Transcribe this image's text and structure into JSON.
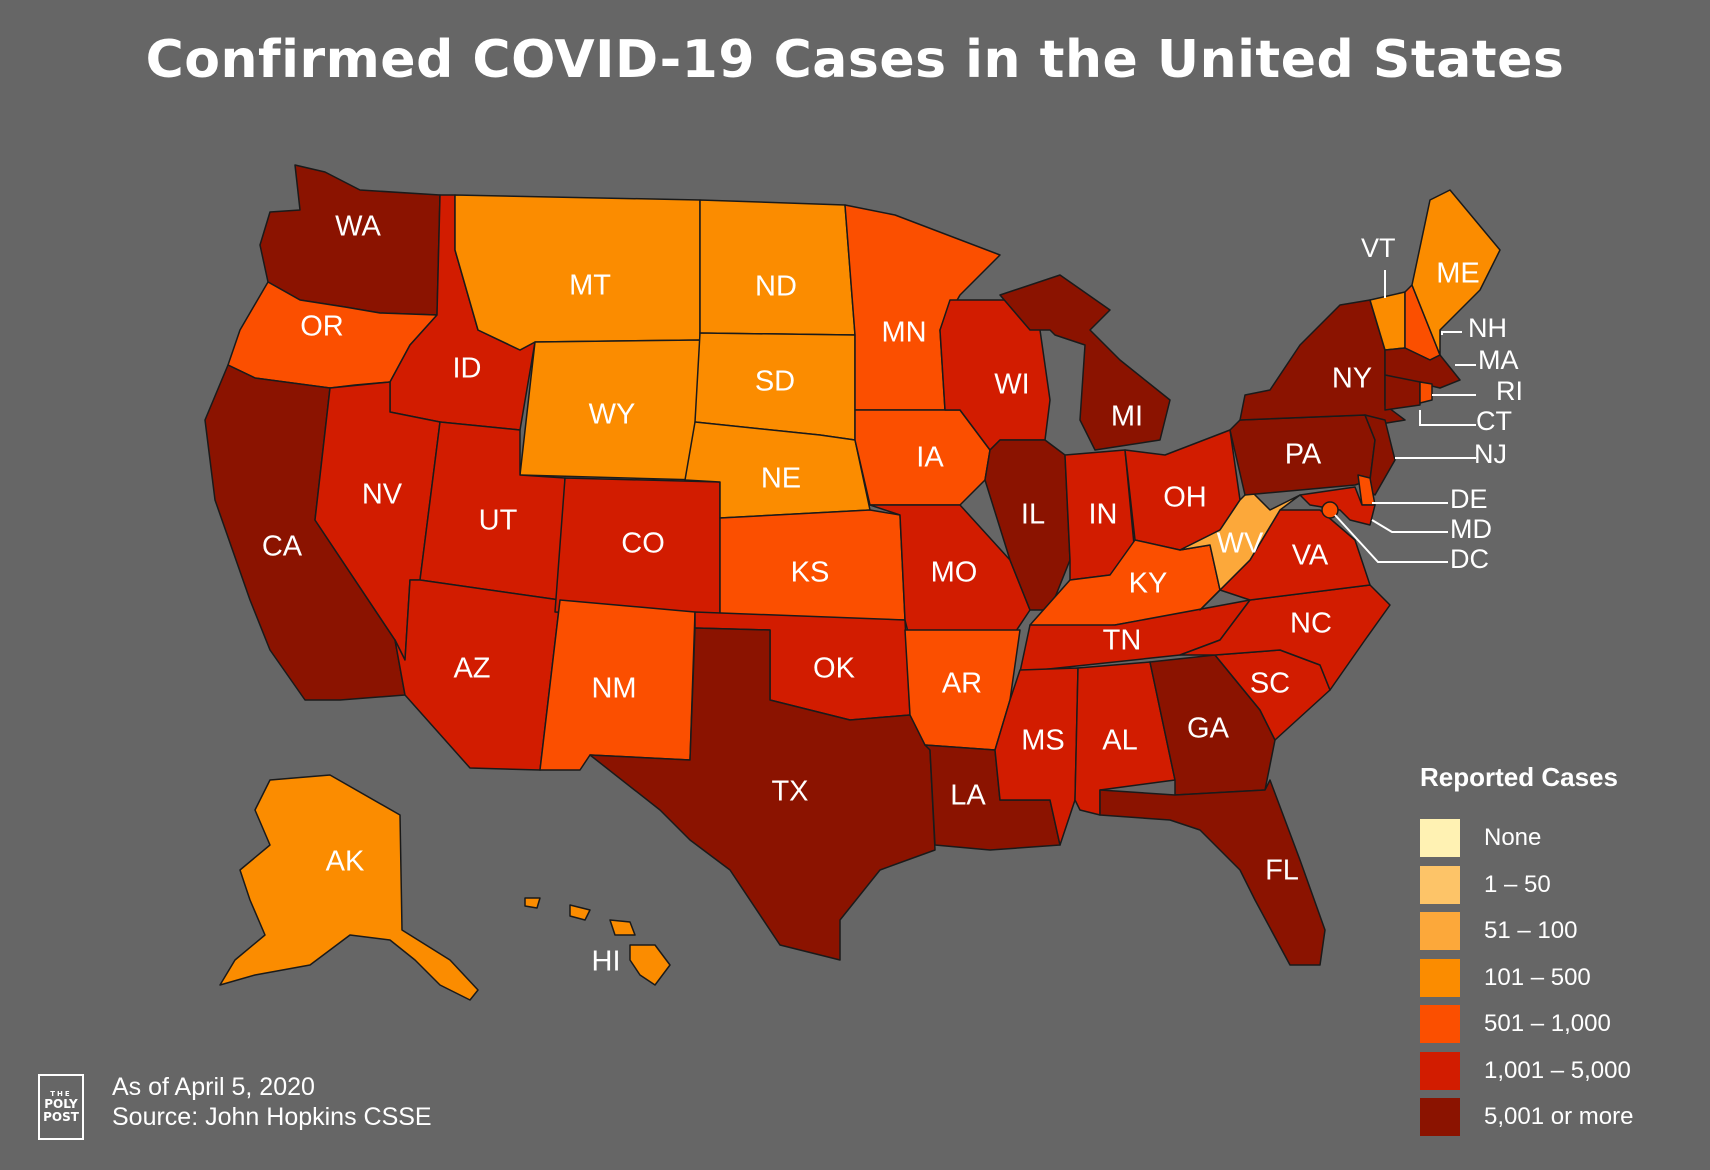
{
  "title": "Confirmed COVID-19 Cases in the United States",
  "legend": {
    "title": "Reported Cases",
    "items": [
      {
        "label": "None",
        "color": "#fff2b3"
      },
      {
        "label": "1 – 50",
        "color": "#fdc468"
      },
      {
        "label": "51 – 100",
        "color": "#fca83a"
      },
      {
        "label": "101 – 500",
        "color": "#fb8c00"
      },
      {
        "label": "501 – 1,000",
        "color": "#fb4f00"
      },
      {
        "label": "1,001 – 5,000",
        "color": "#d21c00"
      },
      {
        "label": "5,001 or more",
        "color": "#8b1300"
      }
    ]
  },
  "states": {
    "WA": {
      "label": "WA",
      "category": 6
    },
    "OR": {
      "label": "OR",
      "category": 4
    },
    "CA": {
      "label": "CA",
      "category": 6
    },
    "ID": {
      "label": "ID",
      "category": 5
    },
    "NV": {
      "label": "NV",
      "category": 5
    },
    "MT": {
      "label": "MT",
      "category": 3
    },
    "WY": {
      "label": "WY",
      "category": 3
    },
    "UT": {
      "label": "UT",
      "category": 5
    },
    "AZ": {
      "label": "AZ",
      "category": 5
    },
    "CO": {
      "label": "CO",
      "category": 5
    },
    "NM": {
      "label": "NM",
      "category": 4
    },
    "ND": {
      "label": "ND",
      "category": 3
    },
    "SD": {
      "label": "SD",
      "category": 3
    },
    "NE": {
      "label": "NE",
      "category": 3
    },
    "KS": {
      "label": "KS",
      "category": 4
    },
    "OK": {
      "label": "OK",
      "category": 5
    },
    "TX": {
      "label": "TX",
      "category": 6
    },
    "MN": {
      "label": "MN",
      "category": 4
    },
    "IA": {
      "label": "IA",
      "category": 4
    },
    "MO": {
      "label": "MO",
      "category": 5
    },
    "AR": {
      "label": "AR",
      "category": 4
    },
    "LA": {
      "label": "LA",
      "category": 6
    },
    "WI": {
      "label": "WI",
      "category": 5
    },
    "IL": {
      "label": "IL",
      "category": 6
    },
    "MI": {
      "label": "MI",
      "category": 6
    },
    "IN": {
      "label": "IN",
      "category": 5
    },
    "OH": {
      "label": "OH",
      "category": 5
    },
    "KY": {
      "label": "KY",
      "category": 4
    },
    "TN": {
      "label": "TN",
      "category": 5
    },
    "MS": {
      "label": "MS",
      "category": 5
    },
    "AL": {
      "label": "AL",
      "category": 5
    },
    "GA": {
      "label": "GA",
      "category": 6
    },
    "FL": {
      "label": "FL",
      "category": 6
    },
    "SC": {
      "label": "SC",
      "category": 5
    },
    "NC": {
      "label": "NC",
      "category": 5
    },
    "VA": {
      "label": "VA",
      "category": 5
    },
    "WV": {
      "label": "WV",
      "category": 2
    },
    "PA": {
      "label": "PA",
      "category": 6
    },
    "NY": {
      "label": "NY",
      "category": 6
    },
    "VT": {
      "label": "VT",
      "category": 3
    },
    "NH": {
      "label": "NH",
      "category": 4
    },
    "ME": {
      "label": "ME",
      "category": 3
    },
    "MA": {
      "label": "MA",
      "category": 6
    },
    "RI": {
      "label": "RI",
      "category": 4
    },
    "CT": {
      "label": "CT",
      "category": 6
    },
    "NJ": {
      "label": "NJ",
      "category": 6
    },
    "DE": {
      "label": "DE",
      "category": 4
    },
    "MD": {
      "label": "MD",
      "category": 5
    },
    "DC": {
      "label": "DC",
      "category": 4
    },
    "AK": {
      "label": "AK",
      "category": 3
    },
    "HI": {
      "label": "HI",
      "category": 3
    }
  },
  "footer": {
    "date": "As of April 5, 2020",
    "source": "Source: John Hopkins CSSE",
    "logo_line1": "THE",
    "logo_line2": "POLY",
    "logo_line3": "POST"
  }
}
